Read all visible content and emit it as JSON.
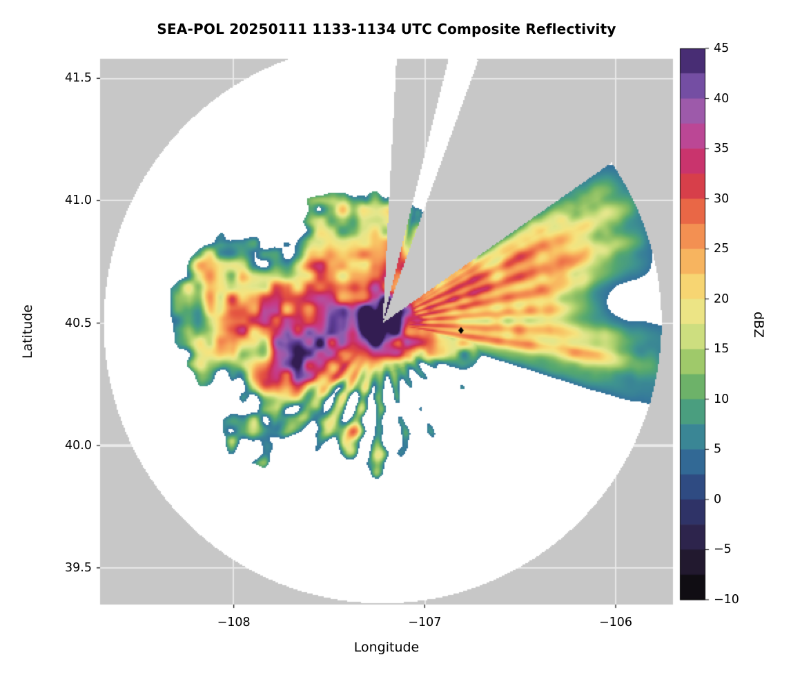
{
  "chart_data": {
    "type": "heatmap",
    "title": "SEA-POL 20250111 1133-1134 UTC Composite Reflectivity",
    "xlabel": "Longitude",
    "ylabel": "Latitude",
    "xlim": [
      -108.7,
      -105.7
    ],
    "ylim": [
      39.35,
      41.58
    ],
    "grid": true,
    "x_ticks": [
      {
        "value": -108,
        "label": "−108"
      },
      {
        "value": -107,
        "label": "−107"
      },
      {
        "value": -106,
        "label": "−106"
      }
    ],
    "y_ticks": [
      {
        "value": 39.5,
        "label": "39.5"
      },
      {
        "value": 40.0,
        "label": "40.0"
      },
      {
        "value": 40.5,
        "label": "40.5"
      },
      {
        "value": 41.0,
        "label": "41.0"
      },
      {
        "value": 41.5,
        "label": "41.5"
      }
    ],
    "colorbar": {
      "label": "dBZ",
      "vmin": -10,
      "vmax": 45,
      "ticks": [
        {
          "value": 45,
          "label": "45"
        },
        {
          "value": 40,
          "label": "40"
        },
        {
          "value": 35,
          "label": "35"
        },
        {
          "value": 30,
          "label": "30"
        },
        {
          "value": 25,
          "label": "25"
        },
        {
          "value": 20,
          "label": "20"
        },
        {
          "value": 15,
          "label": "15"
        },
        {
          "value": 10,
          "label": "10"
        },
        {
          "value": 5,
          "label": "5"
        },
        {
          "value": 0,
          "label": "0"
        },
        {
          "value": -5,
          "label": "−5"
        },
        {
          "value": -10,
          "label": "−10"
        }
      ]
    },
    "colormap_stops": [
      [
        -10,
        "#060606"
      ],
      [
        -7.5,
        "#1a1420"
      ],
      [
        -5,
        "#2b1f3e"
      ],
      [
        -2.5,
        "#2f2a5a"
      ],
      [
        0,
        "#303d75"
      ],
      [
        2.5,
        "#2f5a8f"
      ],
      [
        5,
        "#35789b"
      ],
      [
        7.5,
        "#3f948f"
      ],
      [
        10,
        "#55a86f"
      ],
      [
        12.5,
        "#86bc63"
      ],
      [
        15,
        "#b8d672"
      ],
      [
        17.5,
        "#e3e68c"
      ],
      [
        20,
        "#f6e37e"
      ],
      [
        22.5,
        "#f8c766"
      ],
      [
        25,
        "#f7a258"
      ],
      [
        27.5,
        "#f07e4c"
      ],
      [
        30,
        "#e35140"
      ],
      [
        32.5,
        "#cb2e55"
      ],
      [
        35,
        "#c73a86"
      ],
      [
        37.5,
        "#b055a5"
      ],
      [
        40,
        "#8b5fb0"
      ],
      [
        42.5,
        "#5e3d96"
      ],
      [
        45,
        "#331d52"
      ]
    ],
    "background_outside_scan": "#c7c7c7",
    "scan_area_color": "#ffffff",
    "gridline_color": "#e9e9e9",
    "radar": {
      "center_lon": -107.22,
      "center_lat": 40.5,
      "radius_deg_lon": 1.46,
      "radius_deg_lat": 1.145
    },
    "blocked_sectors_az_deg": [
      [
        3,
        14
      ],
      [
        20,
        55
      ]
    ],
    "marker": {
      "lon": -106.81,
      "lat": 40.47,
      "shape": "diamond",
      "color": "#000000"
    },
    "echo": {
      "center_lon": -107.42,
      "center_lat": 40.485,
      "extent_deg_lon": 0.85,
      "extent_deg_lat": 0.5,
      "core_dbz_max": 45,
      "display_threshold_dbz": 4.5,
      "ne_lobe": {
        "az_start_deg": 52,
        "az_end_deg": 108,
        "max_range_frac": 0.55,
        "peak_dbz": 32
      },
      "spoke_sector_az_deg": [
        122,
        234
      ],
      "se_green_az_deg": 152,
      "sliver_gap_az_deg": [
        12,
        26
      ],
      "noise_seed": 11
    }
  }
}
